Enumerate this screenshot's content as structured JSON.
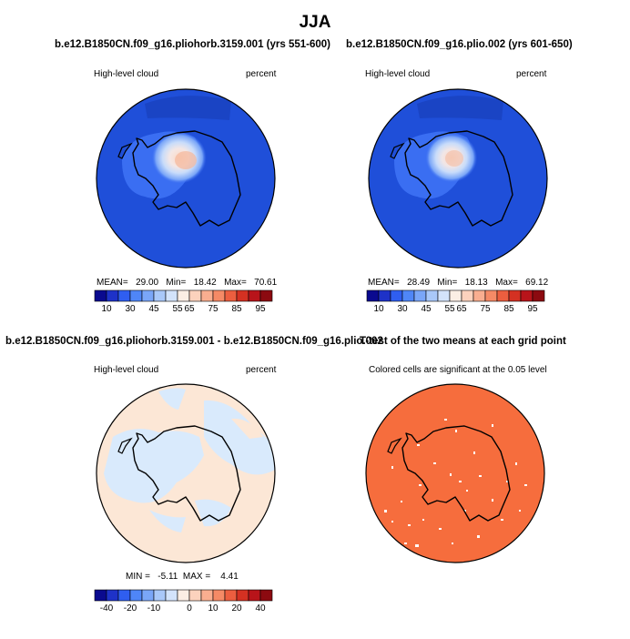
{
  "title": "JJA",
  "panels": [
    {
      "title": "b.e12.B1850CN.f09_g16.pliohorb.3159.001 (yrs 551-600)",
      "left_label": "High-level cloud",
      "right_label": "percent",
      "stats": "MEAN=   29.00   Min=   18.42   Max=   70.61"
    },
    {
      "title": "b.e12.B1850CN.f09_g16.plio.002 (yrs 601-650)",
      "left_label": "High-level cloud",
      "right_label": "percent",
      "stats": "MEAN=   28.49   Min=   18.13   Max=   69.12"
    },
    {
      "title": "b.e12.B1850CN.f09_g16.pliohorb.3159.001 - b.e12.B1850CN.f09_g16.plio.002",
      "left_label": "High-level cloud",
      "right_label": "percent",
      "stats": "MIN =   -5.11  MAX =    4.41"
    },
    {
      "title": "T-test of the two means at each grid point",
      "subtitle": "Colored cells are significant at the 0.05 level"
    }
  ],
  "colorbars": {
    "top": {
      "labels": [
        "10",
        "30",
        "45",
        "55",
        "65",
        "75",
        "85",
        "95"
      ],
      "colors": [
        "#0a0a8f",
        "#1e32c8",
        "#2f5ef0",
        "#4f86f7",
        "#7aa6f8",
        "#a9c8f9",
        "#d3e3fb",
        "#fbeee4",
        "#fcd2bd",
        "#f9ae90",
        "#f58a66",
        "#ec5e3f",
        "#d43122",
        "#b8141a",
        "#8c0a10"
      ]
    },
    "bottom": {
      "labels": [
        "-40",
        "-20",
        "-10",
        "0",
        "10",
        "20",
        "40"
      ],
      "colors": [
        "#0a0a8f",
        "#1e32c8",
        "#2f5ef0",
        "#4f86f7",
        "#7aa6f8",
        "#a9c8f9",
        "#d3e3fb",
        "#fbeee4",
        "#fcd2bd",
        "#f9ae90",
        "#f58a66",
        "#ec5e3f",
        "#d43122",
        "#b8141a",
        "#8c0a10"
      ]
    }
  },
  "map_colors": {
    "ocean_blue": "#1f4fd9",
    "diff_pale_orange": "#fce7d6",
    "diff_pale_blue": "#d9eafc",
    "ttest_orange": "#f66d3d"
  }
}
